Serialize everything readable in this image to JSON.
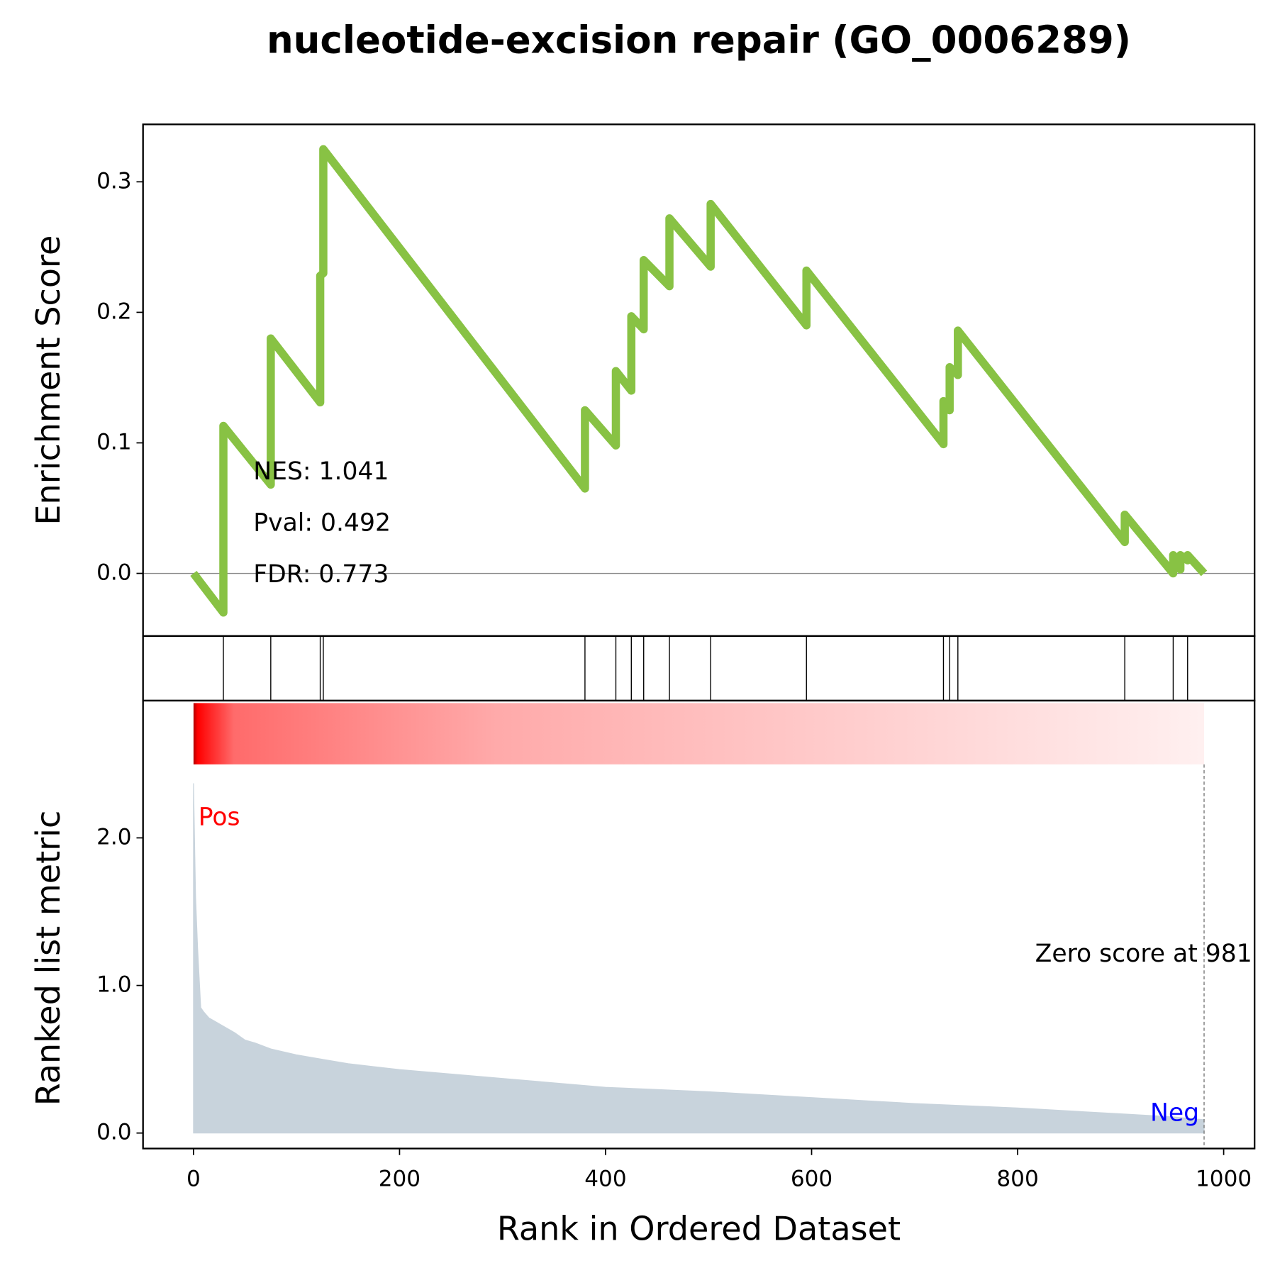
{
  "chart_data": [
    {
      "type": "line",
      "title": "nucleotide-excision repair (GO_0006289)",
      "ylabel": "Enrichment Score",
      "color": "#88c244",
      "ylim": [
        -0.048,
        0.344
      ],
      "yticks": [
        {
          "value": 0,
          "label": "0.0"
        },
        0.1,
        0.2,
        0.3
      ],
      "x": [
        0,
        29,
        29,
        75,
        75,
        123,
        123,
        126,
        126,
        380,
        380,
        410,
        410,
        425,
        425,
        437,
        437,
        462,
        462,
        502,
        502,
        595,
        595,
        728,
        728,
        734,
        734,
        742,
        742,
        904,
        904,
        951,
        951,
        958,
        958,
        965,
        965,
        981
      ],
      "values": [
        0,
        -0.03,
        0.113,
        0.068,
        0.18,
        0.131,
        0.228,
        0.23,
        0.325,
        0.065,
        0.125,
        0.098,
        0.155,
        0.14,
        0.197,
        0.187,
        0.24,
        0.22,
        0.272,
        0.235,
        0.283,
        0.19,
        0.232,
        0.099,
        0.132,
        0.125,
        0.158,
        0.152,
        0.186,
        0.024,
        0.045,
        0.0,
        0.014,
        0.003,
        0.014,
        0.01,
        0.014,
        0.0
      ],
      "annotations": [
        "NES: 1.041",
        "Pval: 0.492",
        "FDR: 0.773"
      ]
    },
    {
      "type": "hits",
      "x": [
        29,
        75,
        123,
        126,
        380,
        410,
        425,
        437,
        462,
        502,
        595,
        728,
        734,
        742,
        904,
        951,
        965
      ]
    },
    {
      "type": "area",
      "ylabel": "Ranked list metric",
      "xlabel": "Rank in Ordered Dataset",
      "color": "#c8d3dc",
      "xlim": [
        -49,
        1030
      ],
      "xticks": [
        0,
        200,
        400,
        600,
        800,
        1000
      ],
      "ylim": [
        -0.105,
        2.93
      ],
      "yticks": [
        {
          "value": 0,
          "label": "0.0"
        },
        {
          "value": 1,
          "label": "1.0"
        },
        {
          "value": 2,
          "label": "2.0"
        }
      ],
      "x": [
        0,
        2,
        4,
        7,
        10,
        15,
        20,
        30,
        40,
        50,
        60,
        75,
        100,
        125,
        150,
        175,
        200,
        250,
        300,
        350,
        400,
        450,
        500,
        550,
        600,
        650,
        700,
        750,
        800,
        850,
        900,
        950,
        981
      ],
      "values": [
        2.37,
        1.6,
        1.25,
        0.85,
        0.82,
        0.78,
        0.76,
        0.72,
        0.68,
        0.63,
        0.61,
        0.57,
        0.53,
        0.5,
        0.47,
        0.45,
        0.43,
        0.4,
        0.37,
        0.34,
        0.31,
        0.295,
        0.28,
        0.26,
        0.24,
        0.22,
        0.2,
        0.185,
        0.17,
        0.15,
        0.13,
        0.11,
        0.09
      ],
      "zero_score_at": 981,
      "zero_score_label": "Zero score at 981",
      "pos_label": "Pos",
      "neg_label": "Neg"
    }
  ]
}
